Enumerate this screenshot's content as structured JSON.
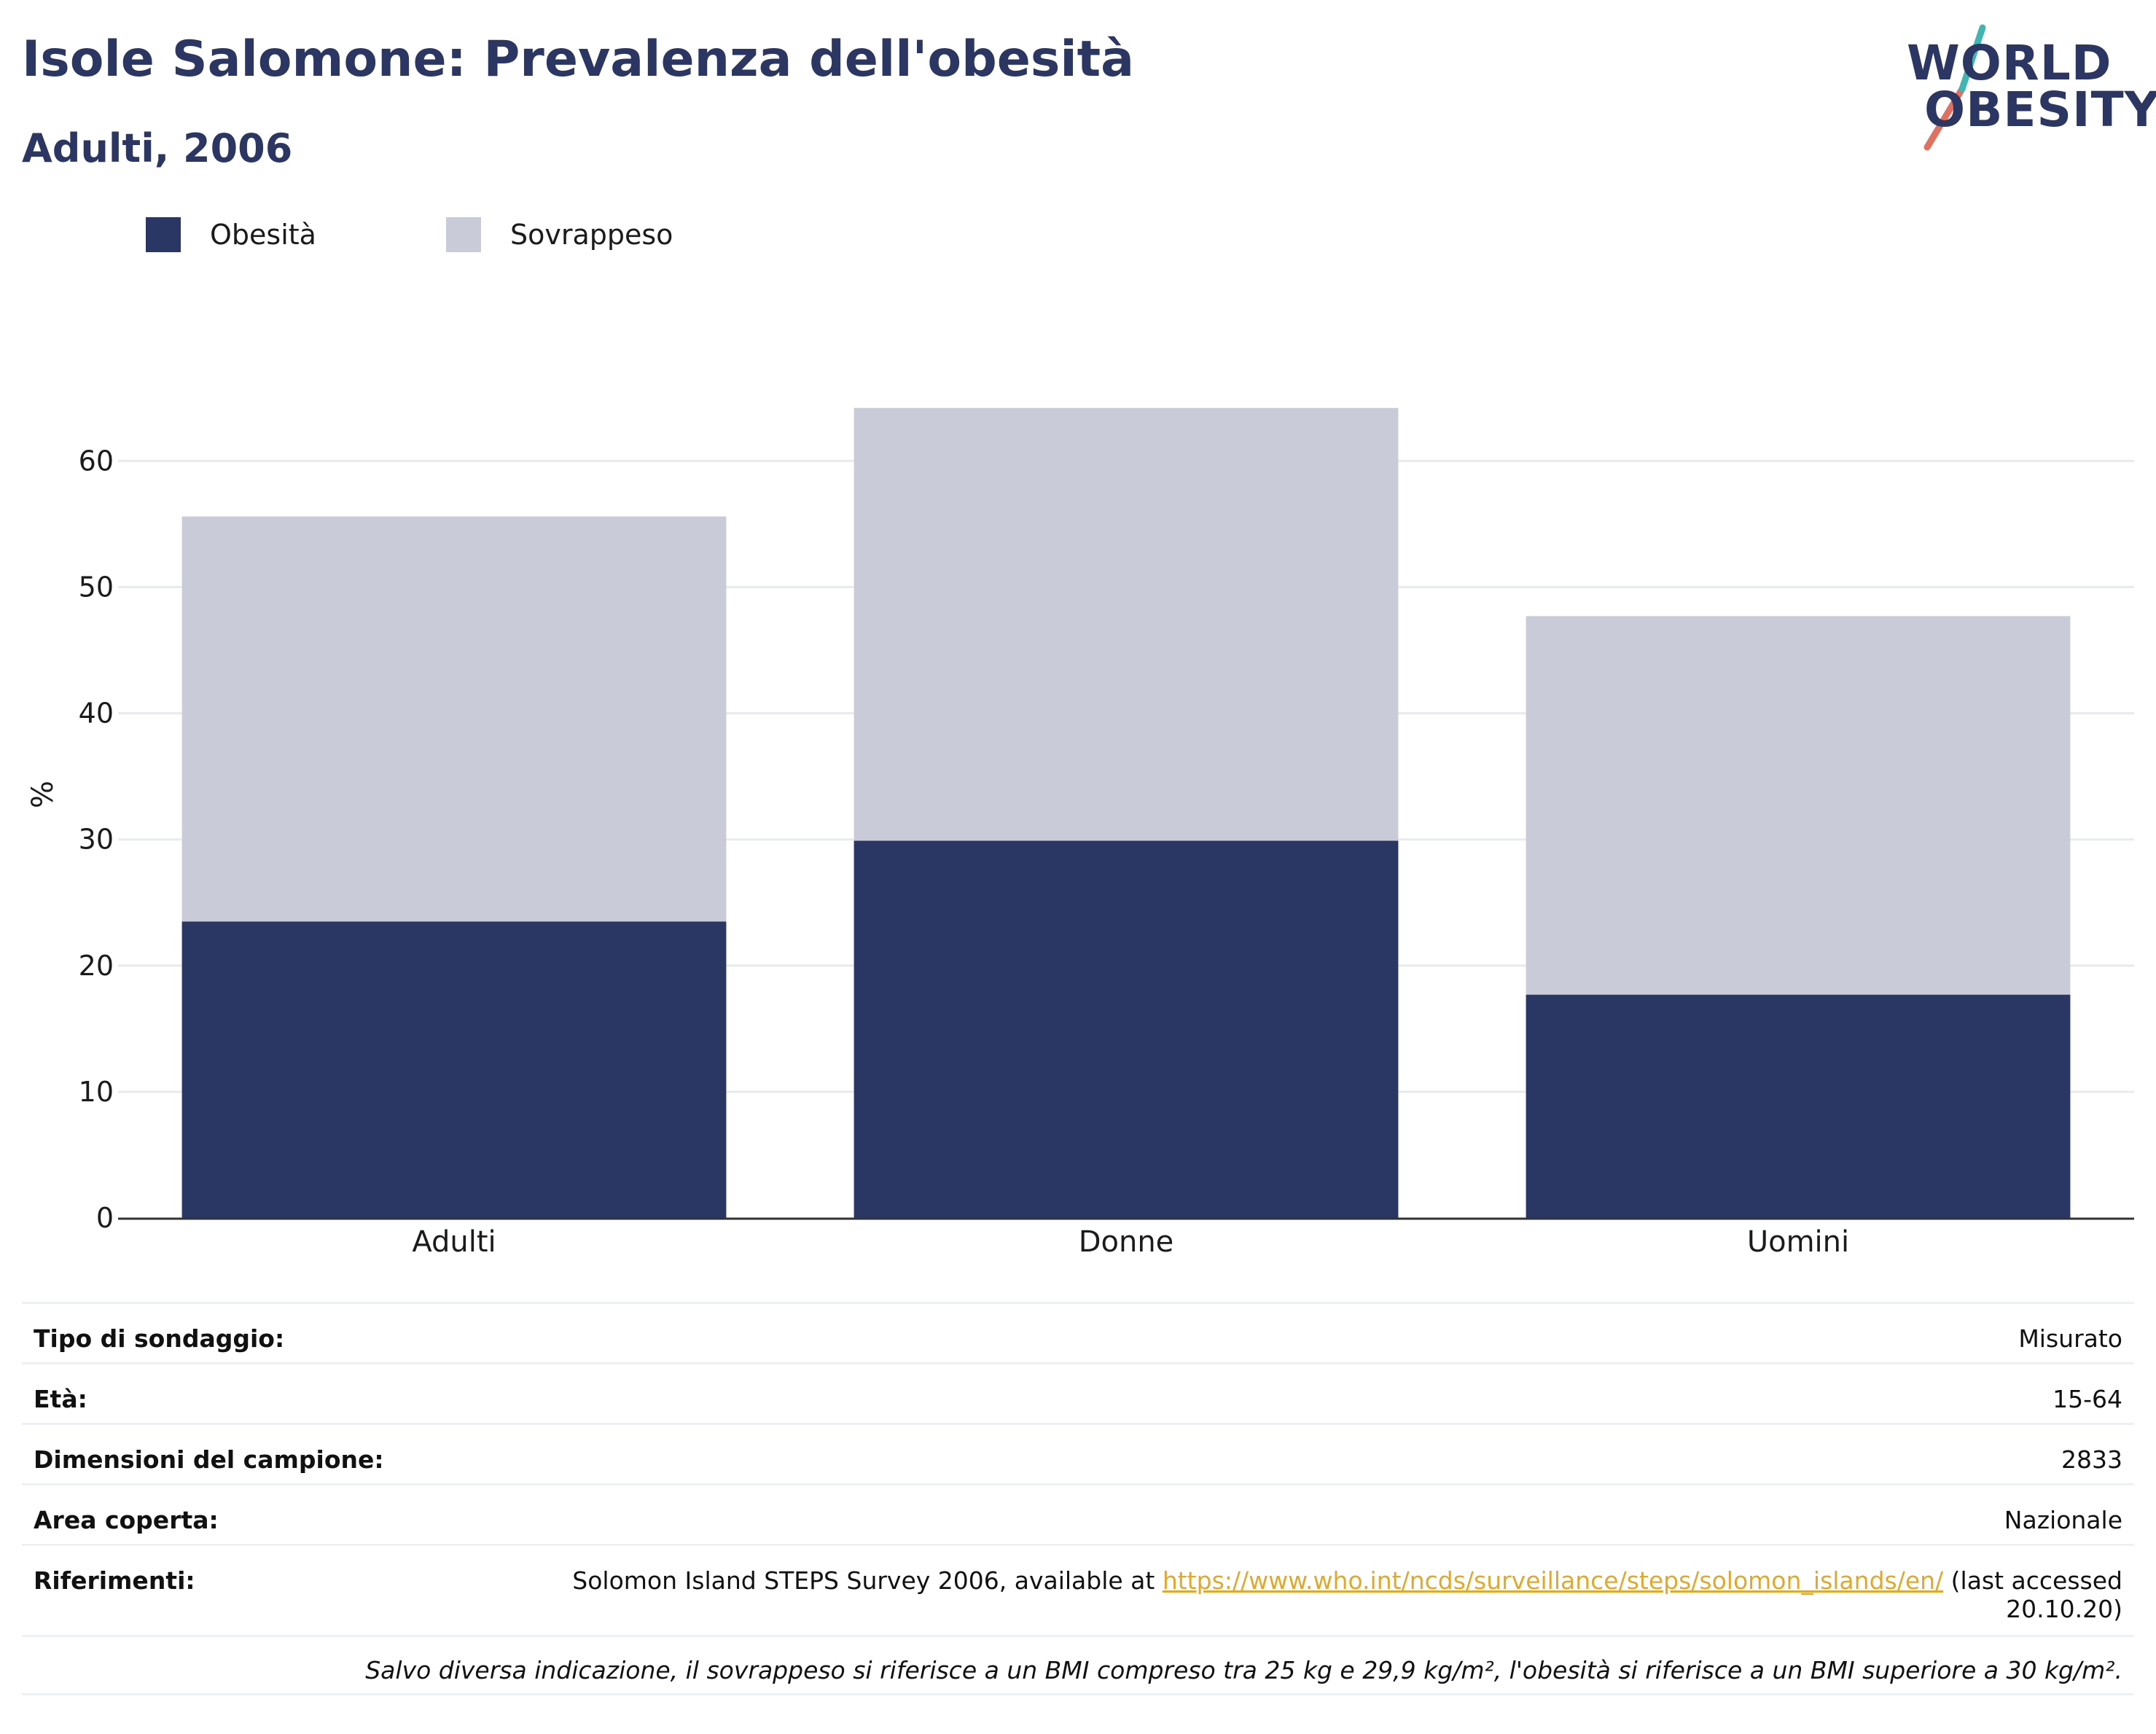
{
  "header": {
    "title": "Isole Salomone: Prevalenza dell'obesità",
    "subtitle": "Adulti, 2006"
  },
  "logo": {
    "line1": "WORLD",
    "line2": "OBESITY"
  },
  "legend": {
    "items": [
      {
        "label": "Obesità",
        "color": "#2a3663"
      },
      {
        "label": "Sovrappeso",
        "color": "#c9ccd8"
      }
    ]
  },
  "chart_data": {
    "type": "bar",
    "stacked": true,
    "categories": [
      "Adulti",
      "Donne",
      "Uomini"
    ],
    "series": [
      {
        "name": "Obesità",
        "color": "#2a3663",
        "values": [
          23.5,
          29.9,
          17.7
        ]
      },
      {
        "name": "Sovrappeso",
        "color": "#c9ccd8",
        "values": [
          32.1,
          34.3,
          30.0
        ]
      }
    ],
    "ylabel": "%",
    "xlabel": "",
    "ylim": [
      0,
      70
    ],
    "yticks": [
      0,
      10,
      20,
      30,
      40,
      50,
      60
    ],
    "grid": true,
    "legend_position": "top-left"
  },
  "info": {
    "rows": [
      {
        "label": "Tipo di sondaggio:",
        "value": "Misurato"
      },
      {
        "label": "Età:",
        "value": "15-64"
      },
      {
        "label": "Dimensioni del campione:",
        "value": "2833"
      },
      {
        "label": "Area coperta:",
        "value": "Nazionale"
      }
    ],
    "reference": {
      "label": "Riferimenti:",
      "text_before": "Solomon Island STEPS Survey 2006, available at ",
      "link": "https://www.who.int/ncds/surveillance/steps/solomon_islands/en/",
      "text_after": " (last accessed",
      "text_line2": "20.10.20)"
    },
    "note": "Salvo diversa indicazione, il sovrappeso si riferisce a un BMI compreso tra 25 kg e 29,9 kg/m², l'obesità si riferisce a un BMI superiore a 30 kg/m²."
  }
}
